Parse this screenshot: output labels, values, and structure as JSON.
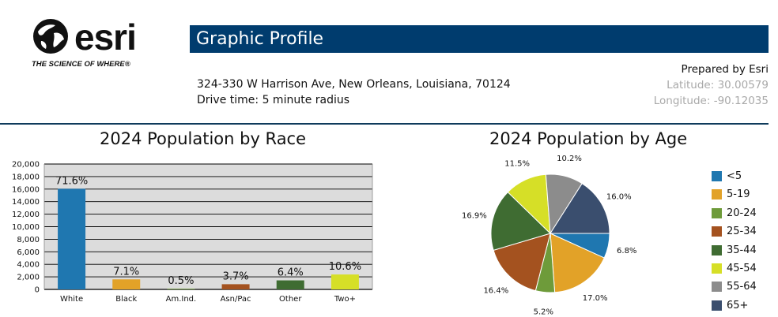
{
  "logo": {
    "name": "esri",
    "tagline": "THE SCIENCE OF WHERE®"
  },
  "header": {
    "title": "Graphic Profile",
    "address": "324-330 W Harrison Ave, New Orleans, Louisiana, 70124",
    "drive_time": "Drive time: 5 minute radius",
    "prepared_by": "Prepared by Esri",
    "latitude": "Latitude: 30.00579",
    "longitude": "Longitude: -90.12035"
  },
  "colors": {
    "title_bar": "#003c6e",
    "rule": "#0f3b5c",
    "plot_bg": "#dcdcdc"
  },
  "chart_data": [
    {
      "type": "bar",
      "title": "2024 Population by Race",
      "categories": [
        "White",
        "Black",
        "Am.Ind.",
        "Asn/Pac",
        "Other",
        "Two+"
      ],
      "values": [
        16050,
        1600,
        110,
        830,
        1440,
        2380
      ],
      "data_labels": [
        "71.6%",
        "7.1%",
        "0.5%",
        "3.7%",
        "6.4%",
        "10.6%"
      ],
      "colors": [
        "#1f77b0",
        "#e2a228",
        "#6e9b3a",
        "#a4521f",
        "#3f6c32",
        "#d6df27"
      ],
      "ylim": [
        0,
        20000
      ],
      "yticks": [
        0,
        2000,
        4000,
        6000,
        8000,
        10000,
        12000,
        14000,
        16000,
        18000,
        20000
      ],
      "ytick_labels": [
        "0",
        "2,000",
        "4,000",
        "6,000",
        "8,000",
        "10,000",
        "12,000",
        "14,000",
        "16,000",
        "18,000",
        "20,000"
      ],
      "grid": true
    },
    {
      "type": "pie",
      "title": "2024 Population by Age",
      "labels": [
        "<5",
        "5-19",
        "20-24",
        "25-34",
        "35-44",
        "45-54",
        "55-64",
        "65+"
      ],
      "values": [
        6.8,
        17.0,
        5.2,
        16.4,
        16.9,
        11.5,
        10.2,
        16.0
      ],
      "value_labels": [
        "6.8%",
        "17.0%",
        "5.2%",
        "16.4%",
        "16.9%",
        "11.5%",
        "10.2%",
        "16.0%"
      ],
      "colors": [
        "#1f77b0",
        "#e2a228",
        "#6e9b3a",
        "#a4521f",
        "#3f6c32",
        "#d6df27",
        "#8c8c8c",
        "#3a4e6e"
      ],
      "legend_position": "right"
    }
  ]
}
